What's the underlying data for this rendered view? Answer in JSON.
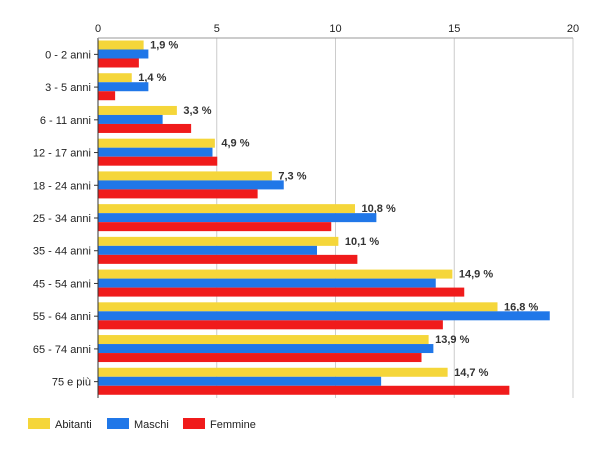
{
  "chart_data": {
    "type": "bar",
    "orientation": "horizontal",
    "title": "",
    "xlabel": "",
    "ylabel": "",
    "xlim": [
      0,
      20
    ],
    "xticks": [
      0,
      5,
      10,
      15,
      20
    ],
    "x_axis_position": "top",
    "grid": true,
    "legend_position": "bottom-left",
    "categories": [
      "0 - 2 anni",
      "3 - 5 anni",
      "6 - 11 anni",
      "12 - 17 anni",
      "18 - 24 anni",
      "25 - 34 anni",
      "35 - 44 anni",
      "45 - 54 anni",
      "55 - 64 anni",
      "65 - 74 anni",
      "75 e più"
    ],
    "series": [
      {
        "name": "Abitanti",
        "color": "#f5d63a",
        "values": [
          1.9,
          1.4,
          3.3,
          4.9,
          7.3,
          10.8,
          10.1,
          14.9,
          16.8,
          13.9,
          14.7
        ],
        "data_labels": [
          "1,9 %",
          "1,4 %",
          "3,3 %",
          "4,9 %",
          "7,3 %",
          "10,8 %",
          "10,1 %",
          "14,9 %",
          "16,8 %",
          "13,9 %",
          "14,7 %"
        ]
      },
      {
        "name": "Maschi",
        "color": "#2077e8",
        "values": [
          2.1,
          2.1,
          2.7,
          4.8,
          7.8,
          11.7,
          9.2,
          14.2,
          19.0,
          14.1,
          11.9
        ]
      },
      {
        "name": "Femmine",
        "color": "#f01b1b",
        "values": [
          1.7,
          0.7,
          3.9,
          5.0,
          6.7,
          9.8,
          10.9,
          15.4,
          14.5,
          13.6,
          17.3
        ]
      }
    ]
  }
}
